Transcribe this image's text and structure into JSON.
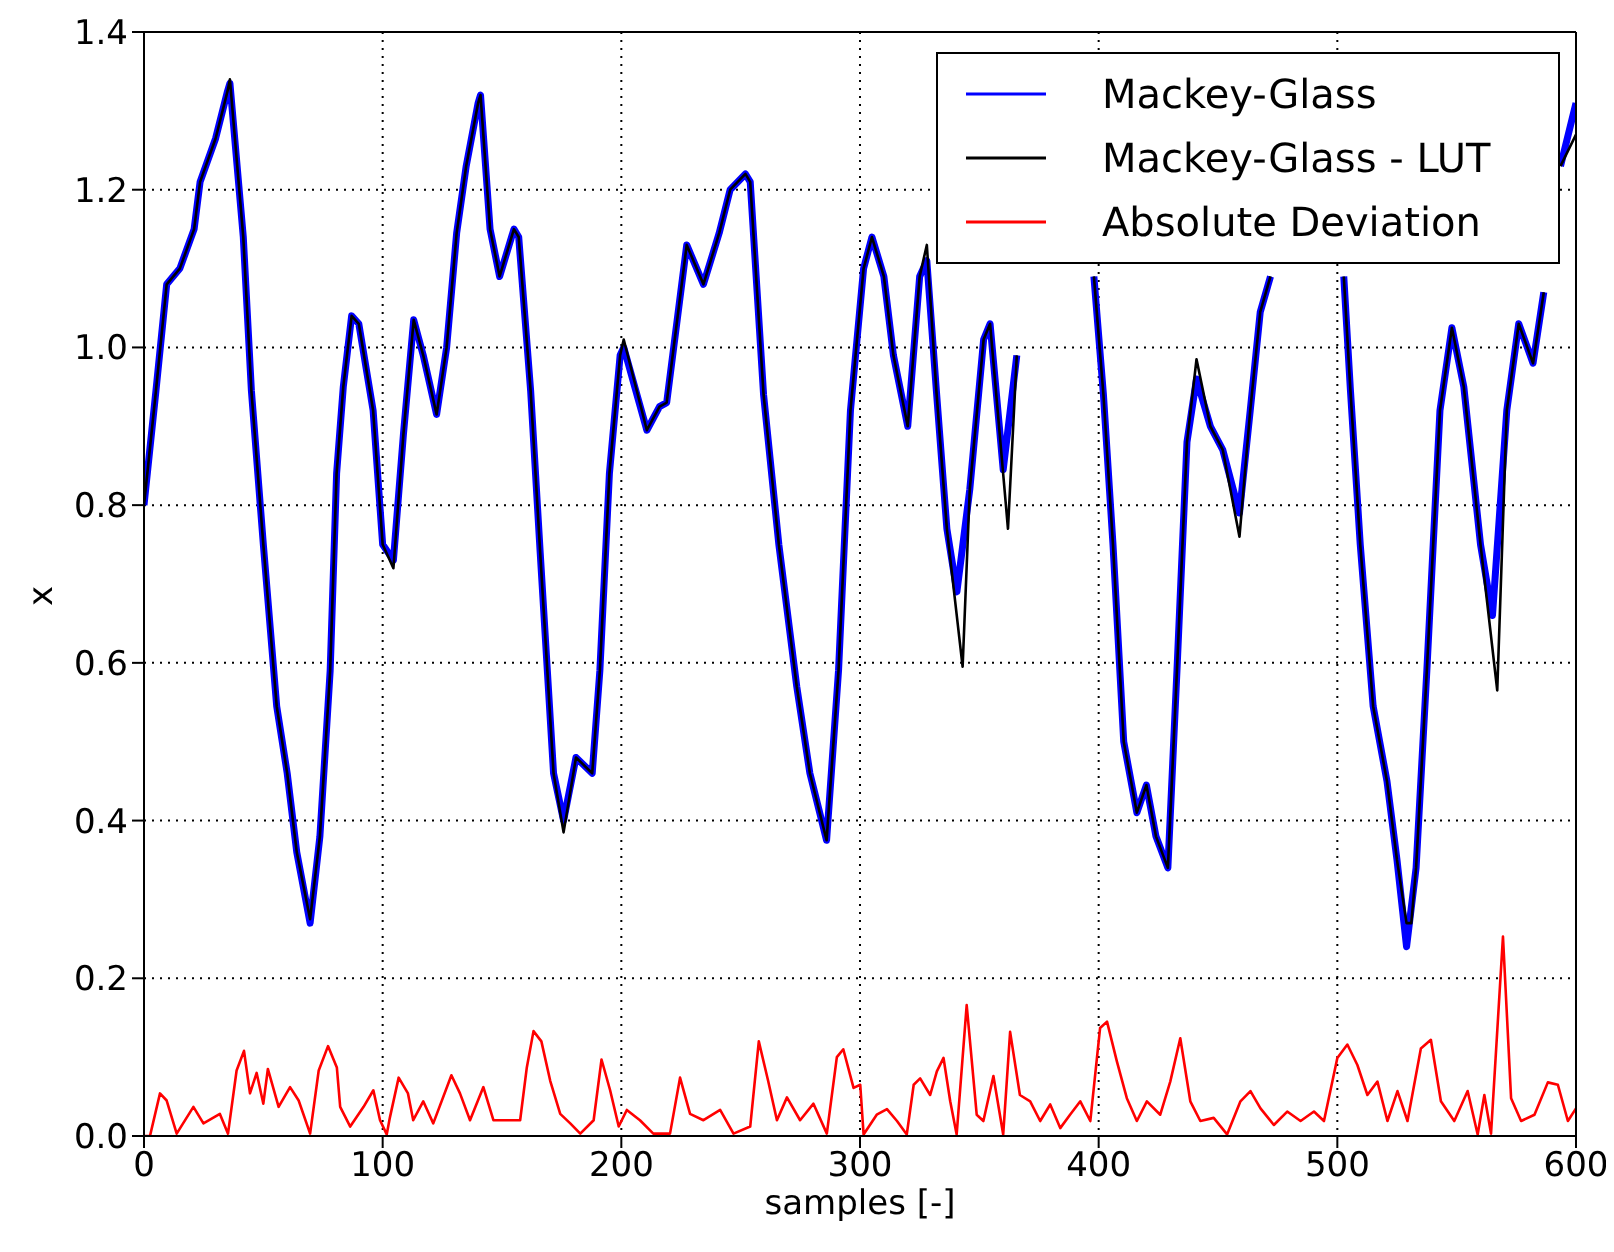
{
  "chart_data": {
    "type": "line",
    "xlabel": "samples [-]",
    "ylabel": "x",
    "xlim": [
      0,
      600
    ],
    "xticks": [
      0,
      100,
      200,
      300,
      400,
      500,
      600
    ],
    "ylim": [
      0,
      1.4
    ],
    "yticks": [
      {
        "value": 0,
        "label": "0.0"
      },
      {
        "value": 0.2,
        "label": "0.2"
      },
      {
        "value": 0.4,
        "label": "0.4"
      },
      {
        "value": 0.6,
        "label": "0.6"
      },
      {
        "value": 0.8,
        "label": "0.8"
      },
      {
        "value": 1.0,
        "label": "1.0"
      },
      {
        "value": 1.2,
        "label": "1.2"
      },
      {
        "value": 1.4,
        "label": "1.4"
      }
    ],
    "grid": true,
    "legend": "top right",
    "line_style": "solid",
    "series": [
      {
        "name": "Mackey-Glass",
        "color": "#0000ff",
        "x": [
          0,
          5,
          9.5,
          15,
          21,
          23.5,
          30,
          35,
          36,
          41.6,
          45,
          50,
          55.6,
          60,
          64,
          69.6,
          73.7,
          78,
          80.7,
          83.5,
          87,
          90,
          96,
          100,
          104.5,
          108.7,
          113,
          117,
          122.6,
          126.8,
          131,
          135,
          140,
          141,
          145,
          149,
          155,
          157,
          162,
          166,
          171.6,
          175.8,
          181,
          187.8,
          191,
          195,
          199.5,
          201,
          210.7,
          216,
          219,
          227.4,
          234.4,
          241,
          245.6,
          252,
          254,
          259.6,
          266,
          273.5,
          279,
          286,
          291,
          296,
          301.5,
          305,
          310,
          314,
          320,
          325,
          328,
          332,
          336.4,
          340.6,
          346,
          351.8,
          354.5,
          360,
          365.7,
          370,
          385,
          398,
          402,
          406,
          410.5,
          416,
          420,
          424,
          429,
          432.8,
          437,
          441,
          446.8,
          452,
          459,
          463.5,
          467.7,
          472,
          487,
          502.7,
          505.5,
          509.6,
          515,
          520.8,
          525,
          529,
          533,
          537.5,
          543,
          548,
          553,
          560,
          565,
          571,
          576,
          582,
          586.5,
          590,
          593.5,
          600
        ],
        "values": [
          0.8,
          0.945,
          1.08,
          1.1,
          1.15,
          1.21,
          1.265,
          1.325,
          1.335,
          1.14,
          0.945,
          0.75,
          0.545,
          0.46,
          0.36,
          0.27,
          0.38,
          0.59,
          0.84,
          0.95,
          1.04,
          1.03,
          0.92,
          0.75,
          0.73,
          0.89,
          1.035,
          0.99,
          0.915,
          1.0,
          1.145,
          1.23,
          1.31,
          1.32,
          1.15,
          1.09,
          1.15,
          1.14,
          0.945,
          0.74,
          0.46,
          0.4,
          0.48,
          0.46,
          0.59,
          0.84,
          0.99,
          1.0,
          0.895,
          0.925,
          0.93,
          1.13,
          1.08,
          1.145,
          1.2,
          1.22,
          1.21,
          0.94,
          0.75,
          0.57,
          0.46,
          0.375,
          0.59,
          0.92,
          1.1,
          1.14,
          1.09,
          0.99,
          0.9,
          1.09,
          1.11,
          0.945,
          0.77,
          0.69,
          0.82,
          1.01,
          1.03,
          0.845,
          0.99,
          null,
          null,
          1.09,
          0.94,
          0.75,
          0.5,
          0.41,
          0.445,
          0.38,
          0.34,
          0.59,
          0.88,
          0.96,
          0.9,
          0.87,
          0.79,
          0.92,
          1.045,
          1.09,
          null,
          1.09,
          0.945,
          0.75,
          0.545,
          0.45,
          0.35,
          0.24,
          0.34,
          0.59,
          0.92,
          1.025,
          0.95,
          0.75,
          0.66,
          0.92,
          1.03,
          0.98,
          1.07,
          null,
          1.23,
          1.31
        ]
      },
      {
        "name": "Mackey-Glass - LUT",
        "color": "#000000",
        "x": [
          0,
          5,
          9.5,
          15,
          21,
          23.5,
          30,
          35,
          36,
          41.6,
          45,
          50,
          55.6,
          60,
          64,
          69.6,
          73.7,
          78,
          80.7,
          83.5,
          87,
          90,
          96,
          100,
          104.5,
          108.7,
          113,
          117,
          122.6,
          126.8,
          131,
          135,
          140,
          141,
          145,
          149,
          155,
          157,
          162,
          166,
          171.6,
          175.8,
          181,
          187.8,
          191,
          195,
          199.5,
          201,
          210.7,
          216,
          219,
          227.4,
          234.4,
          241,
          245.6,
          252,
          254,
          259.6,
          266,
          273.5,
          279,
          286,
          291,
          296,
          301.5,
          305,
          310,
          314,
          320,
          325,
          328,
          332,
          336.4,
          343,
          346,
          351.8,
          354.5,
          362,
          365.7,
          370,
          385,
          398,
          402,
          406,
          410.5,
          416,
          420,
          424,
          429,
          432.8,
          437,
          441,
          446.8,
          452,
          459,
          463.5,
          467.7,
          472,
          487,
          502.7,
          505.5,
          509.6,
          515,
          520.8,
          525,
          529,
          531,
          533,
          537.5,
          543,
          548,
          553,
          560,
          567,
          571,
          576,
          582,
          586.5,
          590,
          593.5,
          600
        ],
        "values": [
          0.8,
          0.945,
          1.08,
          1.1,
          1.15,
          1.21,
          1.265,
          1.325,
          1.34,
          1.14,
          0.945,
          0.75,
          0.545,
          0.46,
          0.36,
          0.275,
          0.38,
          0.59,
          0.84,
          0.95,
          1.04,
          1.03,
          0.92,
          0.75,
          0.72,
          0.89,
          1.035,
          0.99,
          0.915,
          1.0,
          1.145,
          1.23,
          1.31,
          1.32,
          1.15,
          1.09,
          1.15,
          1.14,
          0.945,
          0.74,
          0.46,
          0.385,
          0.48,
          0.46,
          0.59,
          0.84,
          0.99,
          1.01,
          0.895,
          0.925,
          0.93,
          1.13,
          1.08,
          1.145,
          1.2,
          1.22,
          1.21,
          0.94,
          0.75,
          0.57,
          0.46,
          0.375,
          0.59,
          0.92,
          1.1,
          1.14,
          1.09,
          0.99,
          0.9,
          1.09,
          1.13,
          0.945,
          0.77,
          0.595,
          0.82,
          1.01,
          1.03,
          0.77,
          0.99,
          null,
          null,
          1.09,
          0.94,
          0.75,
          0.5,
          0.41,
          0.445,
          0.38,
          0.34,
          0.59,
          0.88,
          0.985,
          0.9,
          0.87,
          0.76,
          0.92,
          1.045,
          1.09,
          null,
          1.09,
          0.945,
          0.75,
          0.545,
          0.45,
          0.35,
          0.27,
          0.27,
          0.34,
          0.59,
          0.92,
          1.025,
          0.95,
          0.75,
          0.565,
          0.92,
          1.03,
          0.98,
          1.07,
          null,
          1.23,
          1.27
        ]
      },
      {
        "name": "Absolute Deviation",
        "color": "#ff0000",
        "x": [
          0,
          2.5,
          6.7,
          9.5,
          13.7,
          20.7,
          24.9,
          31.8,
          35.2,
          38.8,
          41.9,
          44.4,
          47.2,
          50,
          51.9,
          56.4,
          61.2,
          64.8,
          69.6,
          73.2,
          77.1,
          80.8,
          82.2,
          86.4,
          92,
          96.1,
          98.9,
          101.7,
          103,
          106.7,
          110.6,
          112.8,
          117,
          121.2,
          128.8,
          132.4,
          136.6,
          142.2,
          146.4,
          152,
          157.6,
          160.4,
          163.2,
          166.5,
          170.2,
          174.4,
          178.6,
          182.8,
          188.4,
          191.7,
          195.3,
          198.9,
          202.3,
          207.8,
          213.4,
          220.4,
          224.6,
          228.8,
          234.4,
          241.4,
          247,
          254,
          257.6,
          261.5,
          265.2,
          269.4,
          274.9,
          280.5,
          286.1,
          290.3,
          293,
          297.3,
          300.1,
          301.5,
          307,
          311.3,
          315.5,
          319.6,
          322.5,
          325.2,
          329.4,
          332.2,
          335,
          337.8,
          340.5,
          344.7,
          348.9,
          351.7,
          355.9,
          360,
          362.9,
          367,
          371.3,
          375.5,
          379.7,
          383.9,
          388,
          392.3,
          396.5,
          400.6,
          403.5,
          407.6,
          411.8,
          416,
          420.2,
          425.8,
          430,
          434.2,
          438.4,
          442.6,
          448.2,
          453.8,
          459.4,
          463.6,
          467.8,
          473.4,
          479,
          484.6,
          490.2,
          494.4,
          500,
          504.2,
          508.4,
          512.6,
          516.8,
          521,
          525.2,
          529.4,
          535,
          539.2,
          543.4,
          549,
          554.6,
          558.8,
          561.6,
          564.4,
          569.4,
          572.8,
          577,
          582.6,
          588.2,
          592.4,
          596.6,
          600
        ],
        "values": [
          0,
          0,
          0.054,
          0.045,
          0.003,
          0.037,
          0.016,
          0.028,
          0.003,
          0.083,
          0.108,
          0.054,
          0.08,
          0.041,
          0.085,
          0.037,
          0.062,
          0.045,
          0.003,
          0.083,
          0.114,
          0.087,
          0.037,
          0.012,
          0.037,
          0.058,
          0.02,
          0.002,
          0.023,
          0.074,
          0.054,
          0.02,
          0.044,
          0.016,
          0.077,
          0.054,
          0.02,
          0.062,
          0.02,
          0.02,
          0.02,
          0.087,
          0.133,
          0.12,
          0.07,
          0.028,
          0.016,
          0.003,
          0.02,
          0.097,
          0.058,
          0.012,
          0.033,
          0.02,
          0.003,
          0.003,
          0.074,
          0.028,
          0.02,
          0.033,
          0.003,
          0.012,
          0.12,
          0.07,
          0.02,
          0.049,
          0.02,
          0.041,
          0.003,
          0.1,
          0.11,
          0.061,
          0.065,
          0.002,
          0.027,
          0.034,
          0.019,
          0.002,
          0.065,
          0.073,
          0.052,
          0.082,
          0.099,
          0.044,
          0.002,
          0.166,
          0.027,
          0.019,
          0.076,
          0.002,
          0.132,
          0.052,
          0.044,
          0.019,
          0.04,
          0.01,
          0.027,
          0.044,
          0.019,
          0.137,
          0.145,
          0.095,
          0.048,
          0.019,
          0.044,
          0.027,
          0.069,
          0.124,
          0.044,
          0.019,
          0.023,
          0.002,
          0.044,
          0.057,
          0.035,
          0.014,
          0.031,
          0.019,
          0.031,
          0.019,
          0.099,
          0.116,
          0.09,
          0.052,
          0.069,
          0.019,
          0.057,
          0.019,
          0.111,
          0.122,
          0.044,
          0.019,
          0.057,
          0.002,
          0.052,
          0.003,
          0.253,
          0.048,
          0.019,
          0.027,
          0.068,
          0.065,
          0.019,
          0.035
        ]
      }
    ]
  }
}
